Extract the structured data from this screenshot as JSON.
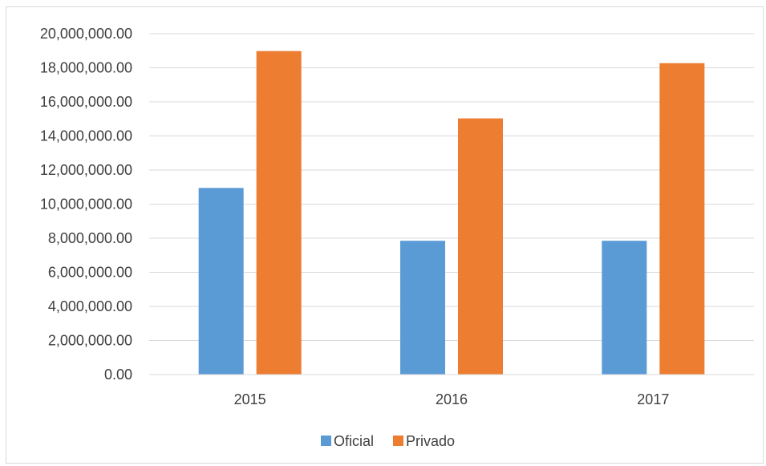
{
  "chart_data": {
    "type": "bar",
    "title": "",
    "xlabel": "",
    "ylabel": "",
    "categories": [
      "2015",
      "2016",
      "2017"
    ],
    "series": [
      {
        "name": "Oficial",
        "color": "#5b9bd5",
        "values": [
          10950000,
          7850000,
          7850000
        ]
      },
      {
        "name": "Privado",
        "color": "#ed7d31",
        "values": [
          18980000,
          15030000,
          18270000
        ]
      }
    ],
    "ylim": [
      0,
      20000000
    ],
    "y_ticks": [
      0,
      2000000,
      4000000,
      6000000,
      8000000,
      10000000,
      12000000,
      14000000,
      16000000,
      18000000,
      20000000
    ],
    "y_tick_labels": [
      "0.00",
      "2,000,000.00",
      "4,000,000.00",
      "6,000,000.00",
      "8,000,000.00",
      "10,000,000.00",
      "12,000,000.00",
      "14,000,000.00",
      "16,000,000.00",
      "18,000,000.00",
      "20,000,000.00"
    ],
    "grid": true,
    "gridline_color": "#d9d9d9",
    "legend_position": "bottom"
  }
}
